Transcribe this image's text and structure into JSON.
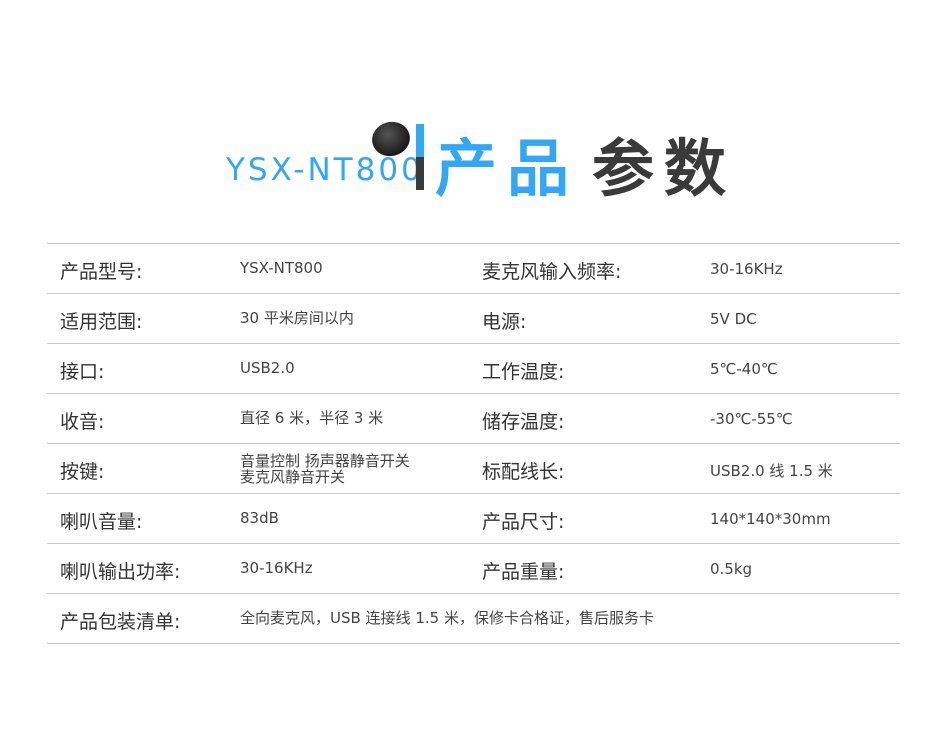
{
  "header": {
    "model": "YSX-NT800",
    "title_blue": "产品",
    "title_dark": "参数",
    "accent": "#33a6f6",
    "dark": "#3a3a3a"
  },
  "rows": [
    {
      "label": "产品型号:",
      "value": "YSX-NT800",
      "label2": "麦克风输入频率:",
      "value2": "30-16KHz"
    },
    {
      "label": "适用范围:",
      "value": "30 平米房间以内",
      "label2": "电源:",
      "value2": "5V DC"
    },
    {
      "label": "接口:",
      "value": "USB2.0",
      "label2": "工作温度:",
      "value2": "5℃-40℃"
    },
    {
      "label": "收音:",
      "value": "直径 6 米，半径 3 米",
      "label2": "储存温度:",
      "value2": "-30℃-55℃"
    },
    {
      "label": "按键:",
      "value": "音量控制 扬声器静音开关",
      "value_line2": "麦克风静音开关",
      "label2": "标配线长:",
      "value2": "USB2.0 线 1.5 米"
    },
    {
      "label": "喇叭音量:",
      "value": "83dB",
      "label2": "产品尺寸:",
      "value2": "140*140*30mm"
    },
    {
      "label": "喇叭输出功率:",
      "value": "30-16KHz",
      "label2": "产品重量:",
      "value2": "0.5kg"
    },
    {
      "label": "产品包装清单:",
      "value": "全向麦克风，USB 连接线 1.5 米，保修卡合格证，售后服务卡"
    }
  ]
}
